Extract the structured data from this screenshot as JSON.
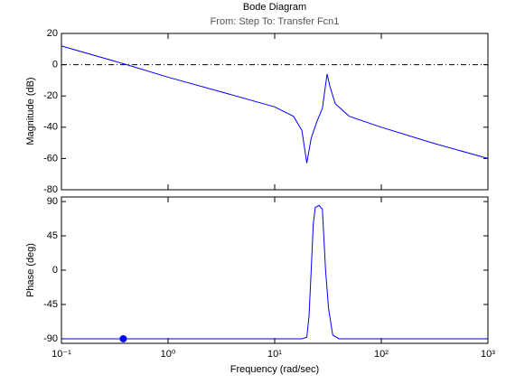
{
  "chart_data": [
    {
      "type": "line",
      "title": "Bode Diagram",
      "subtitle": "From: Step  To: Transfer Fcn1",
      "ylabel": "Magnitude (dB)",
      "xscale": "log",
      "xlim": [
        0.1,
        1000
      ],
      "ylim": [
        -80,
        20
      ],
      "yticks": [
        20,
        0,
        -20,
        -40,
        -60,
        -80
      ],
      "hline": 0,
      "grid": false,
      "series": [
        {
          "name": "Magnitude",
          "color": "#0000ff",
          "x": [
            0.1,
            0.41,
            1,
            3,
            10,
            15,
            18,
            20,
            22,
            25,
            28,
            31,
            33,
            37,
            50,
            100,
            300,
            1000
          ],
          "values": [
            12,
            0,
            -8,
            -17,
            -27,
            -33,
            -42,
            -63,
            -47,
            -36,
            -28,
            -6,
            -14,
            -25,
            -33,
            -40,
            -50,
            -60
          ]
        }
      ]
    },
    {
      "type": "line",
      "ylabel": "Phase (deg)",
      "xlabel": "Frequency  (rad/sec)",
      "xscale": "log",
      "xlim": [
        0.1,
        1000
      ],
      "ylim": [
        -96,
        96
      ],
      "yticks": [
        90,
        45,
        0,
        -45,
        -90
      ],
      "grid": false,
      "xticks": [
        {
          "value": 0.1,
          "label": "10⁻¹"
        },
        {
          "value": 1,
          "label": "10⁰"
        },
        {
          "value": 10,
          "label": "10¹"
        },
        {
          "value": 100,
          "label": "10²"
        },
        {
          "value": 1000,
          "label": "10³"
        }
      ],
      "series": [
        {
          "name": "Phase",
          "color": "#0000ff",
          "x": [
            0.1,
            18,
            20,
            21,
            22,
            23,
            24,
            26,
            28,
            29,
            30,
            32,
            35,
            40,
            1000
          ],
          "values": [
            -90,
            -90,
            -88,
            -60,
            0,
            60,
            82,
            85,
            80,
            40,
            0,
            -50,
            -85,
            -90,
            -90
          ]
        }
      ],
      "marker": {
        "x": 0.38,
        "y": -90,
        "color": "#0000ff"
      }
    }
  ]
}
